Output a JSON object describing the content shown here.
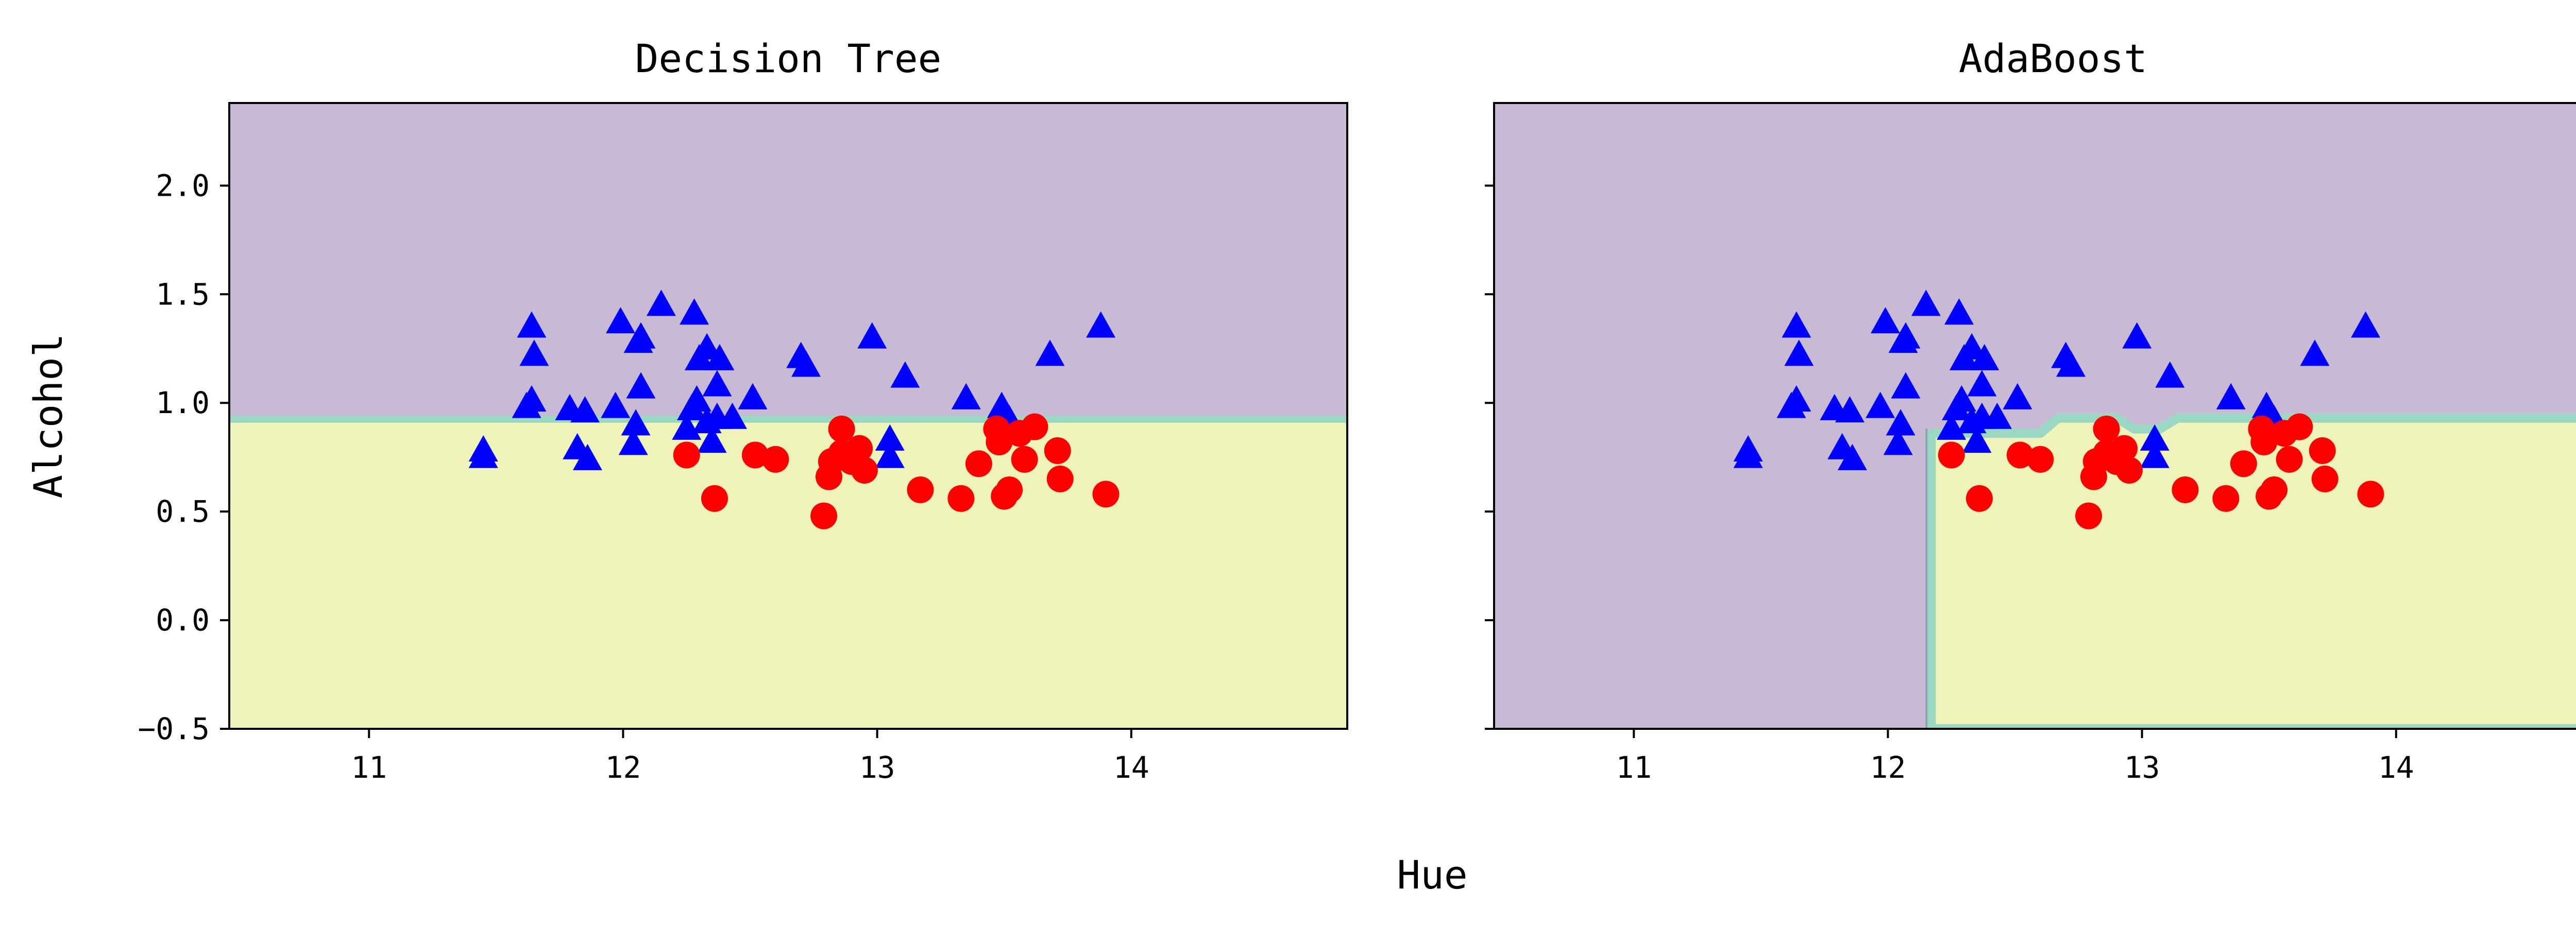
{
  "chart_data": [
    {
      "type": "scatter",
      "title": "Decision Tree",
      "xlabel": "",
      "ylabel": "Alcohol",
      "xlim": [
        10.45,
        14.85
      ],
      "ylim": [
        -0.5,
        2.38
      ],
      "xticks": [
        "11",
        "12",
        "13",
        "14"
      ],
      "xtick_values": [
        11,
        12,
        13,
        14
      ],
      "yticks": [
        "−0.5",
        "0.0",
        "0.5",
        "1.0",
        "1.5",
        "2.0"
      ],
      "ytick_values": [
        -0.5,
        0.0,
        0.5,
        1.0,
        1.5,
        2.0
      ],
      "grid": false,
      "background": "decision regions: class 0 above y = 0.925 (purple), class 1 below (yellow)",
      "region_colors": {
        "class0": "#c8b9d4",
        "class1": "#eff3b7",
        "boundary": "#9ad8c3"
      },
      "series": [
        {
          "marker": "triangle",
          "color": "#0000ff",
          "points": [
            [
              11.45,
              0.78
            ],
            [
              11.45,
              0.75
            ],
            [
              11.64,
              1.35
            ],
            [
              11.65,
              1.22
            ],
            [
              11.62,
              0.98
            ],
            [
              11.64,
              1.01
            ],
            [
              11.79,
              0.97
            ],
            [
              11.85,
              0.96
            ],
            [
              11.82,
              0.79
            ],
            [
              11.86,
              0.74
            ],
            [
              11.97,
              0.98
            ],
            [
              11.99,
              1.37
            ],
            [
              12.06,
              1.28
            ],
            [
              12.07,
              1.3
            ],
            [
              12.05,
              0.9
            ],
            [
              12.07,
              1.07
            ],
            [
              12.04,
              0.81
            ],
            [
              12.15,
              1.45
            ],
            [
              12.28,
              1.41
            ],
            [
              12.3,
              1.2
            ],
            [
              12.33,
              1.25
            ],
            [
              12.38,
              1.2
            ],
            [
              12.27,
              0.97
            ],
            [
              12.29,
              1.01
            ],
            [
              12.33,
              0.91
            ],
            [
              12.37,
              0.93
            ],
            [
              12.37,
              1.08
            ],
            [
              12.35,
              0.82
            ],
            [
              12.25,
              0.88
            ],
            [
              12.43,
              0.93
            ],
            [
              12.51,
              1.02
            ],
            [
              12.7,
              1.21
            ],
            [
              12.72,
              1.17
            ],
            [
              12.98,
              1.3
            ],
            [
              13.05,
              0.83
            ],
            [
              13.05,
              0.75
            ],
            [
              13.11,
              1.12
            ],
            [
              13.35,
              1.02
            ],
            [
              13.49,
              0.98
            ],
            [
              13.52,
              0.92
            ],
            [
              13.68,
              1.22
            ],
            [
              13.88,
              1.35
            ]
          ]
        },
        {
          "marker": "circle",
          "color": "#ff0000",
          "points": [
            [
              12.25,
              0.76
            ],
            [
              12.36,
              0.56
            ],
            [
              12.52,
              0.76
            ],
            [
              12.6,
              0.74
            ],
            [
              12.79,
              0.48
            ],
            [
              12.81,
              0.66
            ],
            [
              12.82,
              0.73
            ],
            [
              12.86,
              0.88
            ],
            [
              12.86,
              0.77
            ],
            [
              12.9,
              0.73
            ],
            [
              12.93,
              0.79
            ],
            [
              12.95,
              0.69
            ],
            [
              13.17,
              0.6
            ],
            [
              13.33,
              0.56
            ],
            [
              13.4,
              0.72
            ],
            [
              13.47,
              0.88
            ],
            [
              13.5,
              0.57
            ],
            [
              13.52,
              0.6
            ],
            [
              13.48,
              0.82
            ],
            [
              13.56,
              0.86
            ],
            [
              13.58,
              0.74
            ],
            [
              13.62,
              0.89
            ],
            [
              13.71,
              0.78
            ],
            [
              13.72,
              0.65
            ],
            [
              13.9,
              0.58
            ]
          ]
        }
      ]
    },
    {
      "type": "scatter",
      "title": "AdaBoost",
      "xlabel": "",
      "ylabel": "",
      "xlim": [
        10.45,
        14.85
      ],
      "ylim": [
        -0.5,
        2.38
      ],
      "xticks": [
        "11",
        "12",
        "13",
        "14"
      ],
      "xtick_values": [
        11,
        12,
        13,
        14
      ],
      "yticks": [],
      "ytick_values": [
        -0.5,
        0.0,
        0.5,
        1.0,
        1.5,
        2.0
      ],
      "grid": false,
      "background": "decision regions: class 1 where x > 12.17 and y < ~0.93 (yellow), class 0 elsewhere (purple)",
      "region_colors": {
        "class0": "#c8b9d4",
        "class1": "#eff3b7",
        "boundary": "#9ad8c3"
      },
      "series": [
        {
          "marker": "triangle",
          "color": "#0000ff",
          "points": [
            [
              11.45,
              0.78
            ],
            [
              11.45,
              0.75
            ],
            [
              11.64,
              1.35
            ],
            [
              11.65,
              1.22
            ],
            [
              11.62,
              0.98
            ],
            [
              11.64,
              1.01
            ],
            [
              11.79,
              0.97
            ],
            [
              11.85,
              0.96
            ],
            [
              11.82,
              0.79
            ],
            [
              11.86,
              0.74
            ],
            [
              11.97,
              0.98
            ],
            [
              11.99,
              1.37
            ],
            [
              12.06,
              1.28
            ],
            [
              12.07,
              1.3
            ],
            [
              12.05,
              0.9
            ],
            [
              12.07,
              1.07
            ],
            [
              12.04,
              0.81
            ],
            [
              12.15,
              1.45
            ],
            [
              12.28,
              1.41
            ],
            [
              12.3,
              1.2
            ],
            [
              12.33,
              1.25
            ],
            [
              12.38,
              1.2
            ],
            [
              12.27,
              0.97
            ],
            [
              12.29,
              1.01
            ],
            [
              12.33,
              0.91
            ],
            [
              12.37,
              0.93
            ],
            [
              12.37,
              1.08
            ],
            [
              12.35,
              0.82
            ],
            [
              12.25,
              0.88
            ],
            [
              12.43,
              0.93
            ],
            [
              12.51,
              1.02
            ],
            [
              12.7,
              1.21
            ],
            [
              12.72,
              1.17
            ],
            [
              12.98,
              1.3
            ],
            [
              13.05,
              0.83
            ],
            [
              13.05,
              0.75
            ],
            [
              13.11,
              1.12
            ],
            [
              13.35,
              1.02
            ],
            [
              13.49,
              0.98
            ],
            [
              13.52,
              0.92
            ],
            [
              13.68,
              1.22
            ],
            [
              13.88,
              1.35
            ]
          ]
        },
        {
          "marker": "circle",
          "color": "#ff0000",
          "points": [
            [
              12.25,
              0.76
            ],
            [
              12.36,
              0.56
            ],
            [
              12.52,
              0.76
            ],
            [
              12.6,
              0.74
            ],
            [
              12.79,
              0.48
            ],
            [
              12.81,
              0.66
            ],
            [
              12.82,
              0.73
            ],
            [
              12.86,
              0.88
            ],
            [
              12.86,
              0.77
            ],
            [
              12.9,
              0.73
            ],
            [
              12.93,
              0.79
            ],
            [
              12.95,
              0.69
            ],
            [
              13.17,
              0.6
            ],
            [
              13.33,
              0.56
            ],
            [
              13.4,
              0.72
            ],
            [
              13.47,
              0.88
            ],
            [
              13.5,
              0.57
            ],
            [
              13.52,
              0.6
            ],
            [
              13.48,
              0.82
            ],
            [
              13.56,
              0.86
            ],
            [
              13.58,
              0.74
            ],
            [
              13.62,
              0.89
            ],
            [
              13.71,
              0.78
            ],
            [
              13.72,
              0.65
            ],
            [
              13.9,
              0.58
            ]
          ]
        }
      ]
    }
  ],
  "figure": {
    "shared_xlabel": "Hue"
  }
}
